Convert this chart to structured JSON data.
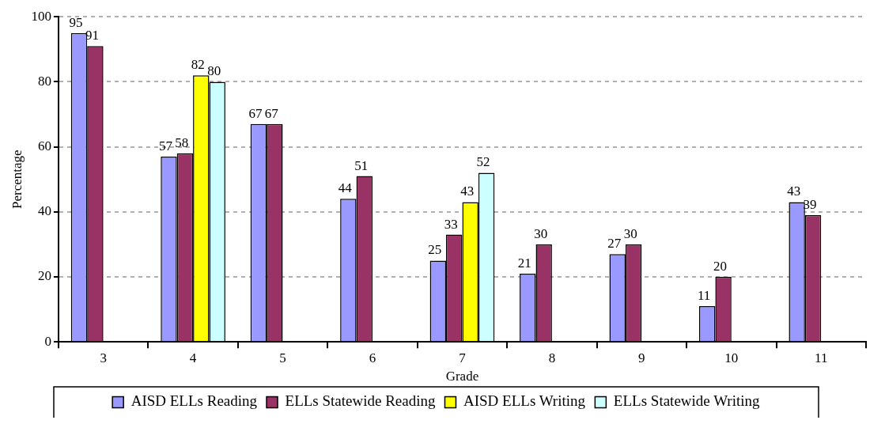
{
  "chart_data": {
    "type": "bar",
    "xlabel": "Grade",
    "ylabel": "Percentage",
    "categories": [
      "3",
      "4",
      "5",
      "6",
      "7",
      "8",
      "9",
      "10",
      "11"
    ],
    "series": [
      {
        "name": "AISD ELLs Reading",
        "color": "#9999ff",
        "values": [
          95,
          57,
          67,
          44,
          25,
          21,
          27,
          11,
          43
        ]
      },
      {
        "name": "ELLs Statewide Reading",
        "color": "#993366",
        "values": [
          91,
          58,
          67,
          51,
          33,
          30,
          30,
          20,
          39
        ]
      },
      {
        "name": "AISD ELLs Writing",
        "color": "#ffff00",
        "values": [
          null,
          82,
          null,
          null,
          43,
          null,
          null,
          null,
          null
        ]
      },
      {
        "name": "ELLs Statewide Writing",
        "color": "#ccffff",
        "values": [
          null,
          80,
          null,
          null,
          52,
          null,
          null,
          null,
          null
        ]
      }
    ],
    "ylim": [
      0,
      100
    ],
    "yticks": [
      0,
      20,
      40,
      60,
      80,
      100
    ],
    "grid": "y",
    "legend": "bottom",
    "data_labels": true
  }
}
